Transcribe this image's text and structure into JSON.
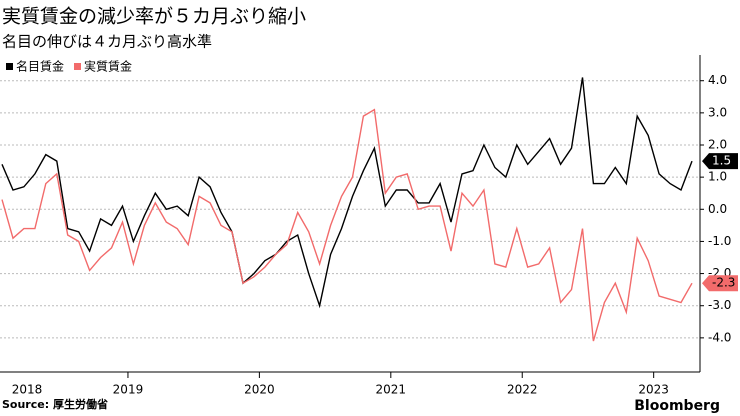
{
  "chart_data": {
    "type": "line",
    "title": "実質賃金の減少率が５カ月ぶり縮小",
    "subtitle": "名目の伸びは４カ月ぶり高水準",
    "source": "Source:  厚生労働省",
    "brand": "Bloomberg",
    "categories": [
      "2018",
      null,
      null,
      null,
      null,
      null,
      null,
      null,
      null,
      null,
      null,
      null,
      "2019",
      null,
      null,
      null,
      null,
      null,
      null,
      null,
      null,
      null,
      null,
      null,
      "2020",
      null,
      null,
      null,
      null,
      null,
      null,
      null,
      null,
      null,
      null,
      null,
      "2021",
      null,
      null,
      null,
      null,
      null,
      null,
      null,
      null,
      null,
      null,
      null,
      "2022",
      null,
      null,
      null,
      null,
      null,
      null,
      null,
      null,
      null,
      null,
      null,
      "2023",
      null,
      null,
      null
    ],
    "series": [
      {
        "name": "名目賃金",
        "color": "#000000",
        "values": [
          1.4,
          0.6,
          0.7,
          1.1,
          1.7,
          1.5,
          -0.6,
          -0.7,
          -1.3,
          -0.3,
          -0.5,
          0.1,
          -1.0,
          -0.2,
          0.5,
          0.0,
          0.1,
          -0.2,
          1.0,
          0.7,
          -0.1,
          -0.7,
          -2.3,
          -2.0,
          -1.6,
          -1.4,
          -1.0,
          -0.8,
          -2.0,
          -3.0,
          -1.4,
          -0.6,
          0.4,
          1.2,
          1.9,
          0.1,
          0.6,
          0.6,
          0.2,
          0.2,
          0.8,
          -0.4,
          1.1,
          1.2,
          2.0,
          1.3,
          1.0,
          2.0,
          1.4,
          1.8,
          2.2,
          1.4,
          1.9,
          4.1,
          0.8,
          0.8,
          1.3,
          0.8,
          2.9,
          2.3,
          1.1,
          0.8,
          0.6,
          1.5
        ]
      },
      {
        "name": "実質賃金",
        "color": "#f26b6b",
        "values": [
          0.3,
          -0.9,
          -0.6,
          -0.6,
          0.8,
          1.1,
          -0.8,
          -1.0,
          -1.9,
          -1.5,
          -1.2,
          -0.4,
          -1.7,
          -0.5,
          0.2,
          -0.4,
          -0.6,
          -1.1,
          0.4,
          0.2,
          -0.5,
          -0.7,
          -2.3,
          -2.1,
          -1.8,
          -1.4,
          -1.1,
          -0.1,
          -0.7,
          -1.7,
          -0.5,
          0.4,
          1.0,
          2.9,
          3.1,
          0.5,
          1.0,
          1.1,
          0.0,
          0.1,
          0.1,
          -1.3,
          0.5,
          0.1,
          0.6,
          -1.7,
          -1.8,
          -0.6,
          -1.8,
          -1.7,
          -1.2,
          -2.9,
          -2.5,
          -0.6,
          -4.1,
          -2.9,
          -2.3,
          -3.2,
          -0.9,
          -1.6,
          -2.7,
          -2.8,
          -2.9,
          -2.3
        ]
      }
    ],
    "ylim": [
      -5,
      4.8
    ],
    "yticks": [
      {
        "value": 4,
        "label": "4.0"
      },
      {
        "value": 3,
        "label": "3.0"
      },
      {
        "value": 2,
        "label": "2.0"
      },
      {
        "value": 1,
        "label": "1.0"
      },
      {
        "value": 0,
        "label": "0.0"
      },
      {
        "value": -1,
        "label": "-1.0"
      },
      {
        "value": -2,
        "label": "-2.0"
      },
      {
        "value": -3,
        "label": "-3.0"
      },
      {
        "value": -4,
        "label": "-4.0"
      }
    ],
    "grid": true
  }
}
